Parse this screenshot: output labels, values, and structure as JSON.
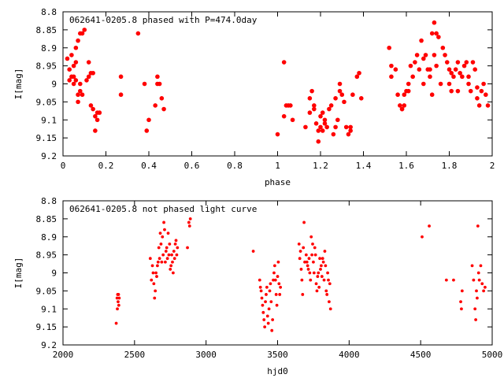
{
  "chart_data": [
    {
      "type": "scatter",
      "title": "062641-0205.8 phased with P=474.0day",
      "xlabel": "phase",
      "ylabel": "I[mag]",
      "xlim": [
        0,
        2
      ],
      "ylim": [
        9.2,
        8.8
      ],
      "y_inverted": true,
      "x_ticks": [
        "0",
        "0.2",
        "0.4",
        "0.6",
        "0.8",
        "1",
        "1.2",
        "1.4",
        "1.6",
        "1.8",
        "2"
      ],
      "x_tick_values": [
        0,
        0.2,
        0.4,
        0.6,
        0.8,
        1.0,
        1.2,
        1.4,
        1.6,
        1.8,
        2.0
      ],
      "y_ticks": [
        "8.8",
        "8.85",
        "8.9",
        "8.95",
        "9",
        "9.05",
        "9.1",
        "9.15",
        "9.2"
      ],
      "y_tick_values": [
        8.8,
        8.85,
        8.9,
        8.95,
        9.0,
        9.05,
        9.1,
        9.15,
        9.2
      ],
      "grid": false,
      "marker_color": "#ff0000",
      "marker": "large-dot",
      "series": [
        {
          "name": "",
          "x": [
            0.02,
            0.03,
            0.03,
            0.04,
            0.04,
            0.05,
            0.05,
            0.05,
            0.06,
            0.06,
            0.06,
            0.07,
            0.07,
            0.07,
            0.08,
            0.08,
            0.08,
            0.09,
            0.09,
            0.1,
            0.11,
            0.12,
            0.12,
            0.13,
            0.13,
            0.14,
            0.14,
            0.15,
            0.15,
            0.16,
            0.16,
            0.17,
            0.27,
            0.27,
            0.35,
            0.38,
            0.39,
            0.4,
            0.43,
            0.44,
            0.44,
            0.45,
            0.46,
            0.47,
            1.0,
            1.03,
            1.03,
            1.04,
            1.05,
            1.06,
            1.07,
            1.13,
            1.15,
            1.15,
            1.16,
            1.17,
            1.17,
            1.18,
            1.19,
            1.19,
            1.2,
            1.2,
            1.21,
            1.21,
            1.22,
            1.22,
            1.23,
            1.24,
            1.25,
            1.26,
            1.27,
            1.27,
            1.28,
            1.29,
            1.29,
            1.3,
            1.31,
            1.32,
            1.33,
            1.34,
            1.34,
            1.35,
            1.37,
            1.38,
            1.39,
            1.52,
            1.53,
            1.53,
            1.55,
            1.56,
            1.57,
            1.58,
            1.58,
            1.59,
            1.59,
            1.6,
            1.61,
            1.61,
            1.62,
            1.63,
            1.64,
            1.65,
            1.66,
            1.67,
            1.68,
            1.68,
            1.69,
            1.7,
            1.71,
            1.71,
            1.72,
            1.72,
            1.73,
            1.73,
            1.74,
            1.74,
            1.75,
            1.76,
            1.77,
            1.78,
            1.79,
            1.8,
            1.8,
            1.81,
            1.81,
            1.82,
            1.83,
            1.84,
            1.84,
            1.85,
            1.86,
            1.87,
            1.88,
            1.89,
            1.89,
            1.9,
            1.91,
            1.92,
            1.93,
            1.93,
            1.94,
            1.95,
            1.96,
            1.97,
            1.98
          ],
          "y": [
            8.93,
            8.96,
            8.99,
            8.92,
            8.98,
            8.95,
            9.0,
            8.98,
            8.9,
            8.99,
            8.94,
            9.03,
            8.88,
            9.05,
            9.02,
            8.86,
            9.0,
            8.86,
            9.03,
            8.85,
            8.99,
            8.94,
            8.98,
            9.06,
            8.97,
            8.97,
            9.07,
            9.13,
            9.09,
            9.1,
            9.08,
            9.08,
            9.03,
            8.98,
            8.86,
            9.0,
            9.13,
            9.1,
            9.06,
            8.98,
            9.0,
            9.0,
            9.04,
            9.07,
            9.14,
            8.94,
            9.09,
            9.06,
            9.06,
            9.06,
            9.1,
            9.12,
            9.04,
            9.08,
            9.02,
            9.06,
            9.07,
            9.11,
            9.13,
            9.16,
            9.09,
            9.12,
            9.08,
            9.13,
            9.11,
            9.1,
            9.12,
            9.07,
            9.06,
            9.14,
            9.12,
            9.04,
            9.1,
            9.0,
            9.02,
            9.03,
            9.05,
            9.12,
            9.14,
            9.12,
            9.13,
            9.03,
            8.98,
            8.97,
            9.04,
            8.9,
            8.95,
            8.98,
            8.96,
            9.03,
            9.06,
            9.07,
            9.07,
            9.03,
            9.06,
            9.02,
            9.02,
            9.0,
            8.95,
            8.98,
            8.94,
            8.92,
            8.96,
            8.88,
            8.93,
            9.0,
            8.92,
            8.96,
            8.96,
            8.98,
            8.86,
            9.03,
            8.83,
            8.92,
            8.95,
            8.86,
            8.87,
            9.0,
            8.9,
            8.92,
            8.94,
            8.96,
            9.0,
            8.97,
            9.02,
            8.98,
            8.96,
            8.94,
            9.02,
            8.97,
            8.98,
            8.95,
            8.94,
            8.98,
            9.0,
            9.02,
            8.94,
            8.96,
            9.01,
            9.04,
            9.06,
            9.02,
            9.0,
            9.03,
            9.06
          ]
        }
      ]
    },
    {
      "type": "scatter",
      "title": "062641-0205.8 not phased light curve",
      "xlabel": "hjd0",
      "ylabel": "I[mag]",
      "xlim": [
        2000,
        5000
      ],
      "ylim": [
        9.2,
        8.8
      ],
      "y_inverted": true,
      "x_ticks": [
        "2000",
        "2500",
        "3000",
        "3500",
        "4000",
        "4500",
        "5000"
      ],
      "x_tick_values": [
        2000,
        2500,
        3000,
        3500,
        4000,
        4500,
        5000
      ],
      "y_ticks": [
        "8.8",
        "8.85",
        "8.9",
        "8.95",
        "9",
        "9.05",
        "9.1",
        "9.15",
        "9.2"
      ],
      "y_tick_values": [
        8.8,
        8.85,
        8.9,
        8.95,
        9.0,
        9.05,
        9.1,
        9.15,
        9.2
      ],
      "grid": false,
      "marker_color": "#ff0000",
      "marker": "small-dot",
      "series": [
        {
          "name": "",
          "x": [
            2372,
            2378,
            2380,
            2382,
            2385,
            2388,
            2390,
            2393,
            2610,
            2618,
            2625,
            2630,
            2635,
            2640,
            2645,
            2650,
            2655,
            2660,
            2665,
            2670,
            2675,
            2680,
            2685,
            2690,
            2695,
            2700,
            2705,
            2710,
            2715,
            2720,
            2725,
            2730,
            2735,
            2740,
            2745,
            2750,
            2755,
            2760,
            2765,
            2770,
            2775,
            2780,
            2785,
            2790,
            2795,
            2800,
            2870,
            2880,
            2885,
            2890,
            3330,
            3375,
            3380,
            3385,
            3390,
            3395,
            3400,
            3405,
            3410,
            3415,
            3420,
            3425,
            3430,
            3435,
            3440,
            3445,
            3450,
            3455,
            3460,
            3465,
            3470,
            3475,
            3480,
            3485,
            3490,
            3495,
            3500,
            3505,
            3510,
            3515,
            3520,
            3650,
            3655,
            3660,
            3665,
            3670,
            3675,
            3680,
            3685,
            3690,
            3700,
            3705,
            3710,
            3715,
            3720,
            3725,
            3730,
            3735,
            3740,
            3745,
            3750,
            3755,
            3760,
            3765,
            3770,
            3775,
            3780,
            3785,
            3790,
            3795,
            3800,
            3805,
            3810,
            3815,
            3820,
            3825,
            3830,
            3835,
            3840,
            3845,
            3850,
            3855,
            3860,
            3865,
            3870,
            4510,
            4560,
            4680,
            4730,
            4780,
            4785,
            4790,
            4860,
            4870,
            4880,
            4885,
            4890,
            4895,
            4900,
            4905,
            4910,
            4920,
            4930,
            4940,
            4950
          ],
          "y": [
            9.14,
            9.07,
            9.1,
            9.06,
            9.08,
            9.06,
            9.09,
            9.07,
            8.96,
            9.02,
            8.98,
            9.0,
            9.03,
            9.07,
            9.05,
            9.0,
            9.01,
            8.98,
            8.97,
            8.93,
            8.96,
            8.89,
            8.92,
            8.97,
            8.9,
            8.95,
            8.86,
            8.88,
            8.97,
            8.94,
            8.93,
            8.96,
            8.89,
            8.95,
            8.92,
            8.99,
            8.98,
            8.95,
            8.97,
            9.0,
            8.94,
            8.96,
            8.92,
            8.91,
            8.95,
            8.93,
            8.93,
            8.86,
            8.87,
            8.85,
            8.94,
            9.02,
            9.04,
            9.05,
            9.07,
            9.09,
            9.11,
            9.13,
            9.15,
            9.08,
            9.06,
            9.04,
            9.12,
            9.14,
            9.1,
            9.05,
            9.03,
            9.08,
            9.16,
            9.13,
            9.02,
            9.0,
            8.98,
            9.02,
            9.06,
            9.09,
            9.01,
            8.97,
            9.03,
            9.06,
            9.04,
            8.92,
            8.96,
            8.94,
            8.99,
            9.02,
            9.06,
            8.93,
            8.86,
            8.97,
            8.95,
            8.97,
            8.98,
            8.99,
            8.96,
            9.0,
            9.02,
            8.9,
            8.95,
            8.92,
            8.97,
            9.0,
            8.93,
            8.95,
            9.03,
            9.05,
            9.01,
            9.0,
            9.04,
            8.96,
            8.99,
            8.98,
            9.01,
            8.96,
            8.97,
            9.02,
            8.94,
            8.98,
            9.05,
            9.06,
            9.0,
            9.02,
            9.08,
            9.03,
            9.1,
            8.9,
            8.87,
            9.02,
            9.02,
            9.08,
            9.1,
            9.05,
            8.98,
            9.02,
            9.1,
            9.13,
            9.05,
            9.07,
            8.87,
            9.0,
            9.02,
            8.98,
            9.03,
            9.05,
            9.04
          ]
        }
      ]
    }
  ]
}
